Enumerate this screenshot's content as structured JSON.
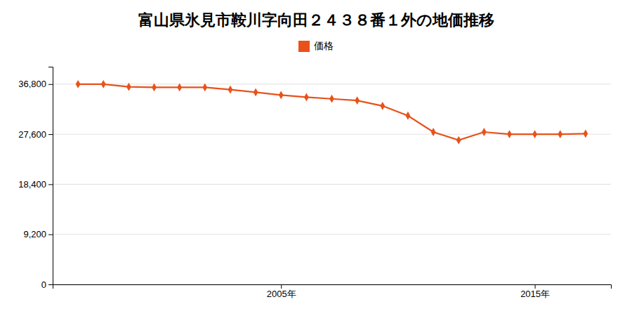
{
  "chart_data": {
    "type": "line",
    "title": "富山県氷見市鞍川字向田２４３８番１外の地価推移",
    "x": [
      1997,
      1998,
      1999,
      2000,
      2001,
      2002,
      2003,
      2004,
      2005,
      2006,
      2007,
      2008,
      2009,
      2010,
      2011,
      2012,
      2013,
      2014,
      2015,
      2016,
      2017
    ],
    "series": [
      {
        "name": "価格",
        "color": "#e8521a",
        "marker": "diamond",
        "values": [
          36800,
          36800,
          36300,
          36200,
          36200,
          36200,
          35800,
          35300,
          34800,
          34400,
          34100,
          33800,
          32800,
          31000,
          28000,
          26500,
          28000,
          27600,
          27600,
          27600,
          27700
        ]
      }
    ],
    "xlim": [
      1996,
      2018
    ],
    "xticks": [
      {
        "value": 2005,
        "label": "2005年"
      },
      {
        "value": 2015,
        "label": "2015年"
      }
    ],
    "ylim": [
      0,
      40000
    ],
    "yticks": [
      0,
      {
        "value": 9200,
        "label": "9,200"
      },
      {
        "value": 18400,
        "label": "18,400"
      },
      {
        "value": 27600,
        "label": "27,600"
      },
      {
        "value": 36800,
        "label": "36,800"
      }
    ],
    "grid": true,
    "legend": "top"
  }
}
